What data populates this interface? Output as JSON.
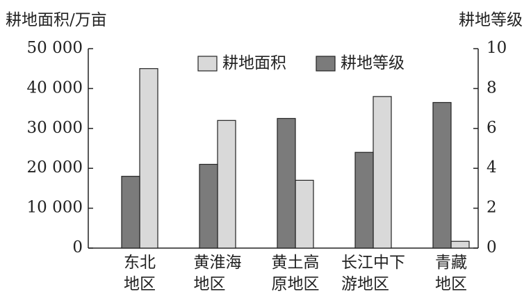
{
  "chart_data": {
    "type": "bar",
    "y_label": "耕地面积/万亩",
    "y2_label": "耕地等级",
    "categories": [
      "东北\n地区",
      "黄淮海\n地区",
      "黄土高\n原地区",
      "长江中下\n游地区",
      "青藏\n地区"
    ],
    "series": [
      {
        "name": "耕地面积",
        "color": "#d9d9d9",
        "values": [
          45000,
          32000,
          17000,
          38000,
          1700
        ]
      },
      {
        "name": "耕地等级",
        "color": "#7b7b7b",
        "axis": "y2",
        "values": [
          3.6,
          4.2,
          6.5,
          4.8,
          7.3
        ]
      }
    ],
    "ylim": [
      0,
      50000
    ],
    "yticks": [
      0,
      {
        "value": 10000,
        "label": "10 000"
      },
      {
        "value": 20000,
        "label": "20 000"
      },
      {
        "value": 30000,
        "label": "30 000"
      },
      {
        "value": 40000,
        "label": "40 000"
      },
      {
        "value": 50000,
        "label": "50 000"
      }
    ],
    "y2lim": [
      0,
      10
    ],
    "y2ticks": [
      0,
      2,
      4,
      6,
      8,
      10
    ]
  }
}
